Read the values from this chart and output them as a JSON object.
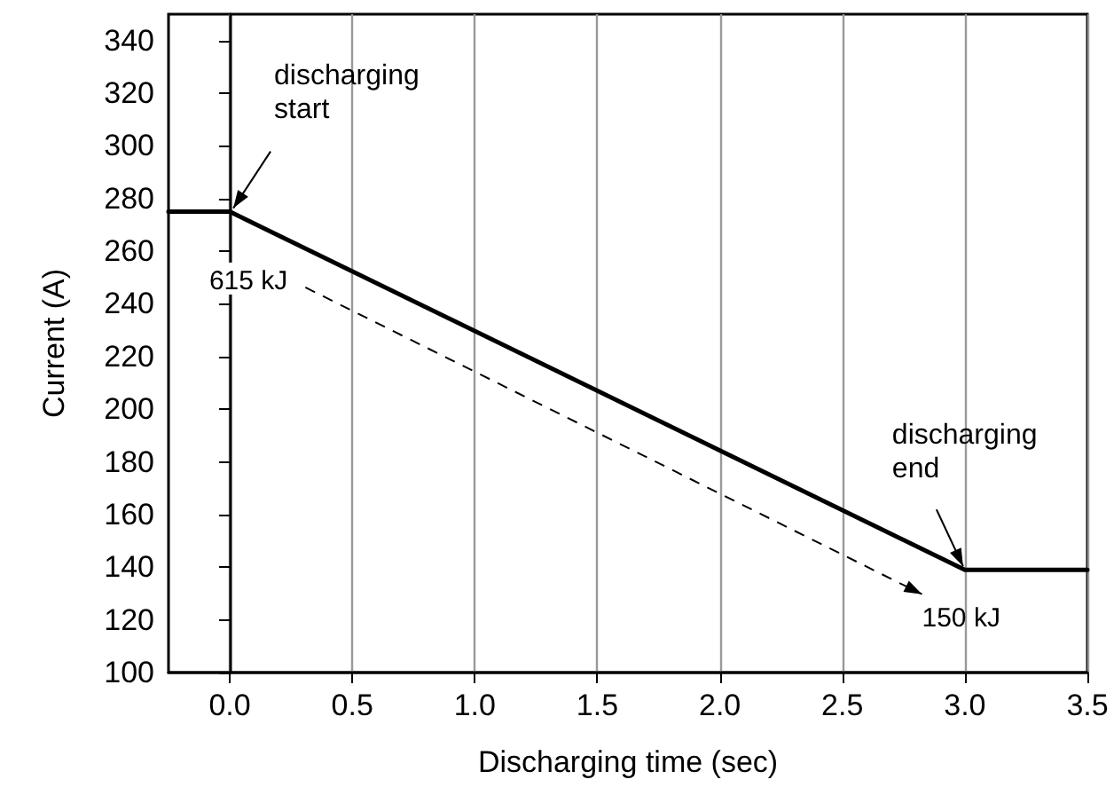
{
  "chart_data": {
    "type": "line",
    "xlabel": "Discharging time (sec)",
    "ylabel": "Current (A)",
    "x": [
      -0.25,
      0,
      3.0,
      3.5
    ],
    "series": [
      {
        "color": "#000000",
        "values": [
          275,
          275,
          139,
          139
        ]
      }
    ],
    "xlim": [
      -0.25,
      3.5
    ],
    "xticks": [
      {
        "value": 0,
        "label": "0.0"
      },
      0.5,
      {
        "value": 1,
        "label": "1.0"
      },
      1.5,
      {
        "value": 2,
        "label": "2.0"
      },
      2.5,
      {
        "value": 3,
        "label": "3.0"
      },
      3.5
    ],
    "ylim": [
      100,
      350
    ],
    "yticks": [
      100,
      120,
      140,
      160,
      180,
      200,
      220,
      240,
      260,
      280,
      300,
      320,
      340
    ],
    "grid": "x",
    "marker": "none",
    "line_style": "solid",
    "annotations": [
      {
        "text": "discharging start",
        "x": 0,
        "y": 275
      },
      {
        "text": "discharging end",
        "x": 3.0,
        "y": 139
      },
      "615 kJ",
      "150 kJ"
    ]
  }
}
